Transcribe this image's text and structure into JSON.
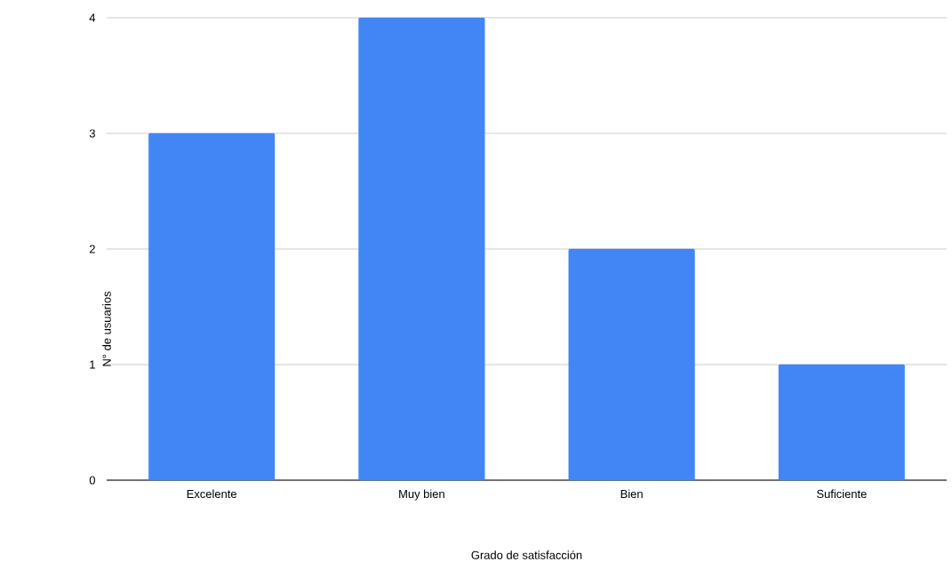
{
  "chart_data": {
    "type": "bar",
    "xlabel": "Grado de satisfacción",
    "ylabel": "N° de usuarios",
    "categories": [
      "Excelente",
      "Muy bien",
      "Bien",
      "Suficiente"
    ],
    "values": [
      3,
      4,
      2,
      1
    ],
    "color": "#4285f4",
    "ylim": [
      0,
      4
    ],
    "yticks": [
      0,
      1,
      2,
      3,
      4
    ],
    "grid": "y"
  }
}
